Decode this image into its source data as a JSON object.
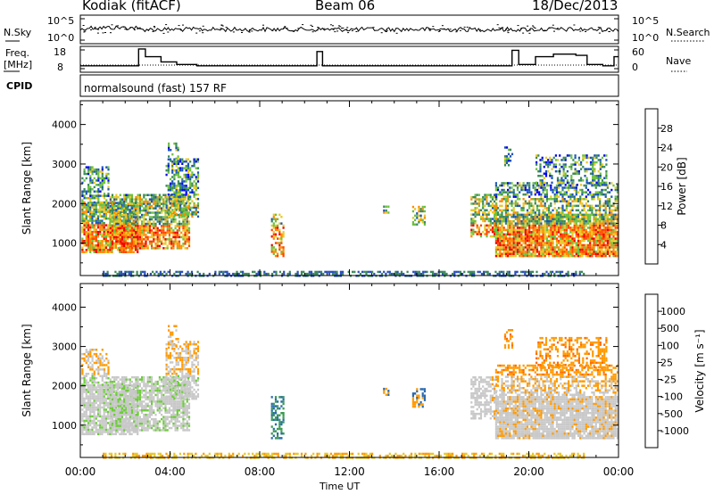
{
  "header": {
    "station": "Kodiak (fitACF)",
    "beam": "Beam 06",
    "date": "18/Dec/2013"
  },
  "noise_panel": {
    "left_label": "N.Sky",
    "right_label": "N.Search",
    "left_ticks": [
      "10^5",
      "10^0"
    ],
    "right_ticks": [
      "10^5",
      "10^0"
    ]
  },
  "freq_panel": {
    "left_label_line1": "Freq.",
    "left_label_line2": "[MHz]",
    "right_label": "Nave",
    "left_ticks": [
      "18",
      "8"
    ],
    "right_ticks": [
      "60",
      "0"
    ],
    "frequency_steps_mhz": [
      [
        0.0,
        10.5
      ],
      [
        2.6,
        17.0
      ],
      [
        2.9,
        14.0
      ],
      [
        3.6,
        12.0
      ],
      [
        4.3,
        11.0
      ],
      [
        5.2,
        10.5
      ],
      [
        10.55,
        16.0
      ],
      [
        10.8,
        10.5
      ],
      [
        19.25,
        16.5
      ],
      [
        19.55,
        11.0
      ],
      [
        20.3,
        14.0
      ],
      [
        21.1,
        15.0
      ],
      [
        22.1,
        14.5
      ],
      [
        22.6,
        11.0
      ],
      [
        23.3,
        10.5
      ],
      [
        23.8,
        14.0
      ],
      [
        24.0,
        14.0
      ]
    ]
  },
  "cpid": {
    "label": "CPID",
    "program": "normalsound (fast) 157 RF"
  },
  "chart_data": [
    {
      "type": "heatmap",
      "name": "power",
      "ylabel": "Slant Range [km]",
      "ylim": [
        180,
        4600
      ],
      "yticks": [
        "1000",
        "2000",
        "3000",
        "4000"
      ],
      "colorbar_label": "Power [dB]",
      "colorbar_ticks": [
        "28",
        "24",
        "20",
        "16",
        "12",
        "8",
        "4"
      ],
      "colors": [
        "#0000ee",
        "#1a55b8",
        "#3a8a5a",
        "#6dc040",
        "#e8c828",
        "#ff8a00",
        "#ff4500",
        "#ee0000"
      ]
    },
    {
      "type": "heatmap",
      "name": "velocity",
      "ylabel": "Slant Range [km]",
      "ylim": [
        180,
        4600
      ],
      "yticks": [
        "1000",
        "2000",
        "3000",
        "4000"
      ],
      "colorbar_label": "Velocity [m s⁻¹]",
      "colorbar_ticks": [
        "1000",
        "500",
        "100",
        "25",
        "-25",
        "-100",
        "-500",
        "-1000"
      ],
      "colors": [
        "#1a3fc0",
        "#2a6ab0",
        "#3a9a50",
        "#6dcc3a",
        "#c8c8c8",
        "#e8c828",
        "#ff9a00",
        "#ff6a00",
        "#ee2000"
      ]
    }
  ],
  "x_axis": {
    "label": "Time UT",
    "ticks": [
      "00:00",
      "04:00",
      "08:00",
      "12:00",
      "16:00",
      "20:00",
      "00:00"
    ]
  }
}
